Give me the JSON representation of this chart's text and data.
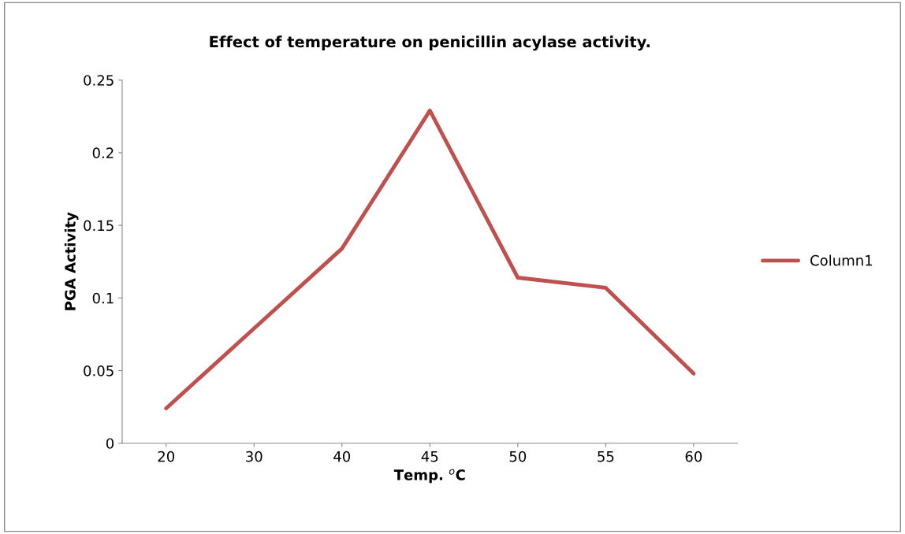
{
  "chart_data": {
    "type": "line",
    "title": "Effect of temperature on penicillin acylase activity.",
    "xlabel": "Temp. $^{o}$C",
    "ylabel": "PGA Activity",
    "categories": [
      "20",
      "30",
      "40",
      "45",
      "50",
      "55",
      "60"
    ],
    "series": [
      {
        "name": "Column1",
        "color": "#c0504d",
        "values": [
          0.024,
          0.079,
          0.134,
          0.229,
          0.114,
          0.107,
          0.048
        ]
      }
    ],
    "ylim": [
      0,
      0.25
    ],
    "yticks": [
      0,
      0.05,
      0.1,
      0.15,
      0.2,
      0.25
    ],
    "grid": false,
    "legend": "right",
    "marker": "none",
    "line_style": "solid"
  }
}
